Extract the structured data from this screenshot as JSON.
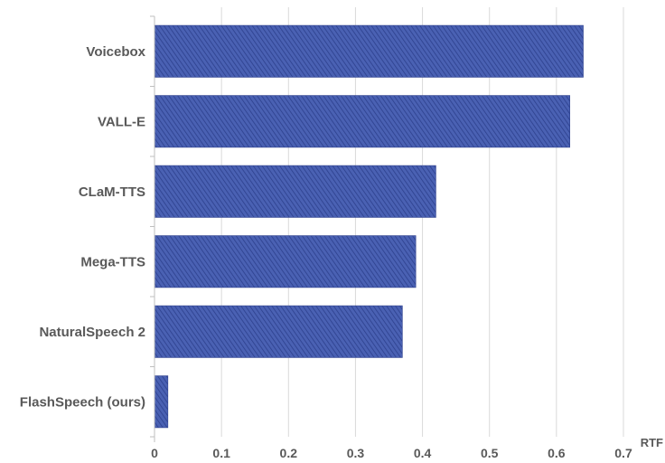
{
  "chart_data": {
    "type": "bar",
    "orientation": "horizontal",
    "categories": [
      "Voicebox",
      "VALL-E",
      "CLaM-TTS",
      "Mega-TTS",
      "NaturalSpeech 2",
      "FlashSpeech (ours)"
    ],
    "values": [
      0.64,
      0.62,
      0.42,
      0.39,
      0.37,
      0.02
    ],
    "xlabel": "RTF",
    "ylabel": "",
    "xlim": [
      0,
      0.7
    ],
    "xticks": [
      "0",
      "0.1",
      "0.2",
      "0.3",
      "0.4",
      "0.5",
      "0.6",
      "0.7"
    ],
    "grid": "vertical",
    "bar_color": "#3f56a8",
    "bar_pattern": "diagonal-hatch"
  }
}
